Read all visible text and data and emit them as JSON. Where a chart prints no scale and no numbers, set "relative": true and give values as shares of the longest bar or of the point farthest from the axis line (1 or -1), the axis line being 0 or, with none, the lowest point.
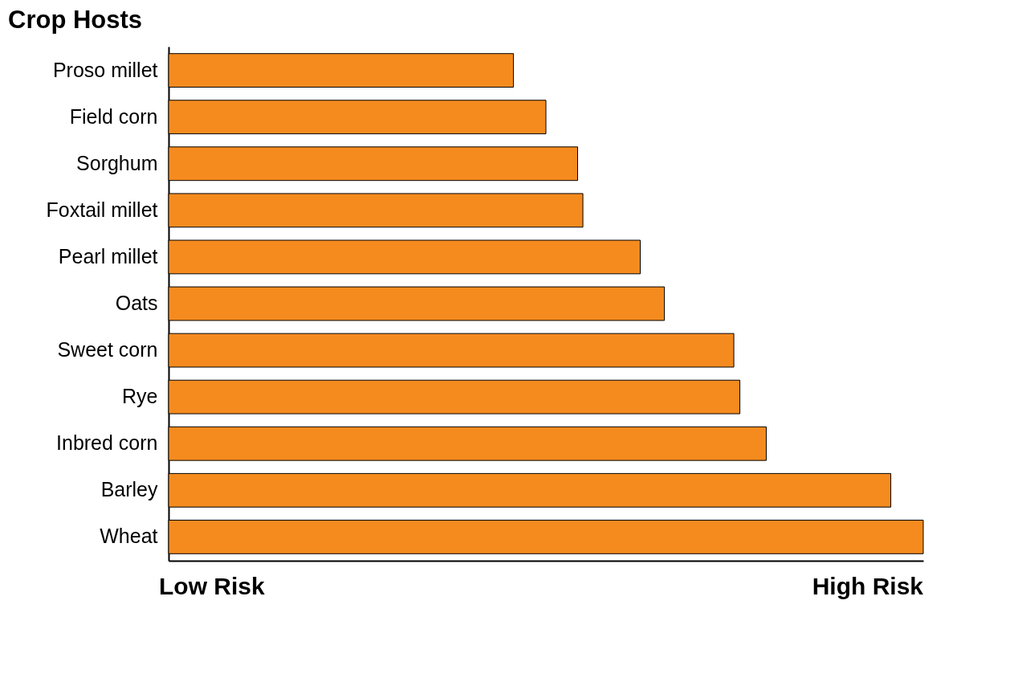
{
  "chart_data": {
    "type": "bar",
    "orientation": "horizontal",
    "relative": true,
    "title": "Crop Hosts",
    "categories": [
      "Proso millet",
      "Field corn",
      "Sorghum",
      "Foxtail millet",
      "Pearl millet",
      "Oats",
      "Sweet corn",
      "Rye",
      "Inbred corn",
      "Barley",
      "Wheat"
    ],
    "values": [
      0.457,
      0.5,
      0.542,
      0.549,
      0.625,
      0.657,
      0.749,
      0.757,
      0.792,
      0.957,
      1
    ],
    "color": "#f58b1f",
    "annotations": [
      "Low Risk",
      "High Risk"
    ]
  }
}
